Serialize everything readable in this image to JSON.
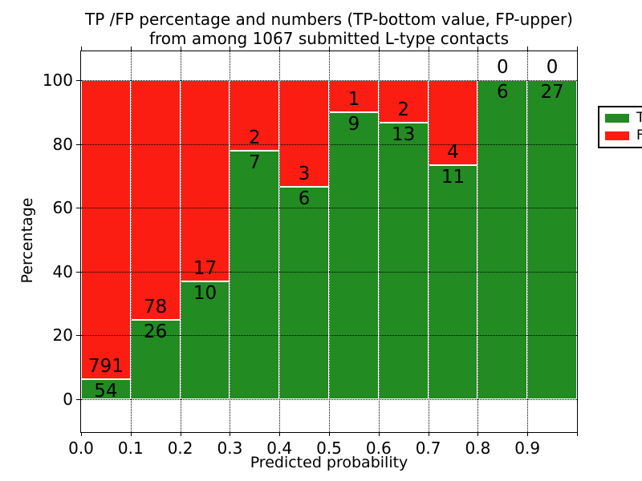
{
  "chart_data": {
    "type": "bar",
    "stacked": true,
    "title_line1": "TP /FP percentage and numbers (TP-bottom value, FP-upper)",
    "title_line2": "from among 1067 submitted L-type contacts",
    "xlabel": "Predicted probability",
    "ylabel": "Percentage",
    "total_contacts": 1067,
    "categories": [
      "0.0-0.1",
      "0.1-0.2",
      "0.2-0.3",
      "0.3-0.4",
      "0.4-0.5",
      "0.5-0.6",
      "0.6-0.7",
      "0.7-0.8",
      "0.8-0.9",
      "0.9-1.0"
    ],
    "series": [
      {
        "name": "TP",
        "color": "#228b22",
        "values": [
          54,
          26,
          10,
          7,
          6,
          9,
          13,
          11,
          6,
          27
        ]
      },
      {
        "name": "FP",
        "color": "#fb1d12",
        "values": [
          791,
          78,
          17,
          2,
          3,
          1,
          2,
          4,
          0,
          0
        ]
      }
    ],
    "tp_percentages": [
      6.4,
      25.0,
      37.0,
      77.8,
      66.7,
      90.0,
      86.7,
      73.3,
      100.0,
      100.0
    ],
    "xticks": [
      "0.0",
      "0.1",
      "0.2",
      "0.3",
      "0.4",
      "0.5",
      "0.6",
      "0.7",
      "0.8",
      "0.9"
    ],
    "yticks": [
      0,
      20,
      40,
      60,
      80,
      100
    ],
    "xlim": [
      0.0,
      1.0
    ],
    "ylim": [
      -10.5,
      109.5
    ],
    "grid": true,
    "bar_edge_color": "#ffffff",
    "legend": {
      "position": "upper right",
      "entries": [
        {
          "label": "TP",
          "color": "#228b22"
        },
        {
          "label": "FP",
          "color": "#fb1d12"
        }
      ]
    }
  }
}
